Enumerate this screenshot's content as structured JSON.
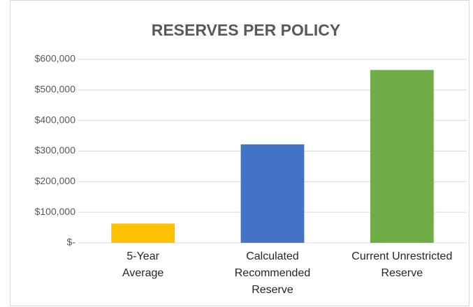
{
  "chart_data": {
    "type": "bar",
    "title": "RESERVES PER POLICY",
    "categories": [
      "5-Year Average",
      "Calculated Recommended Reserve",
      "Current Unrestricted Reserve"
    ],
    "values": [
      63000,
      322000,
      565000
    ],
    "colors": [
      "#ffc000",
      "#4472c4",
      "#70ad47"
    ],
    "ylim": [
      0,
      600000
    ],
    "yticks": [
      {
        "value": 0,
        "label": "$-"
      },
      {
        "value": 100000,
        "label": "$100,000"
      },
      {
        "value": 200000,
        "label": "$200,000"
      },
      {
        "value": 300000,
        "label": "$300,000"
      },
      {
        "value": 400000,
        "label": "$400,000"
      },
      {
        "value": 500000,
        "label": "$500,000"
      },
      {
        "value": 600000,
        "label": "$600,000"
      }
    ],
    "grid": true
  }
}
